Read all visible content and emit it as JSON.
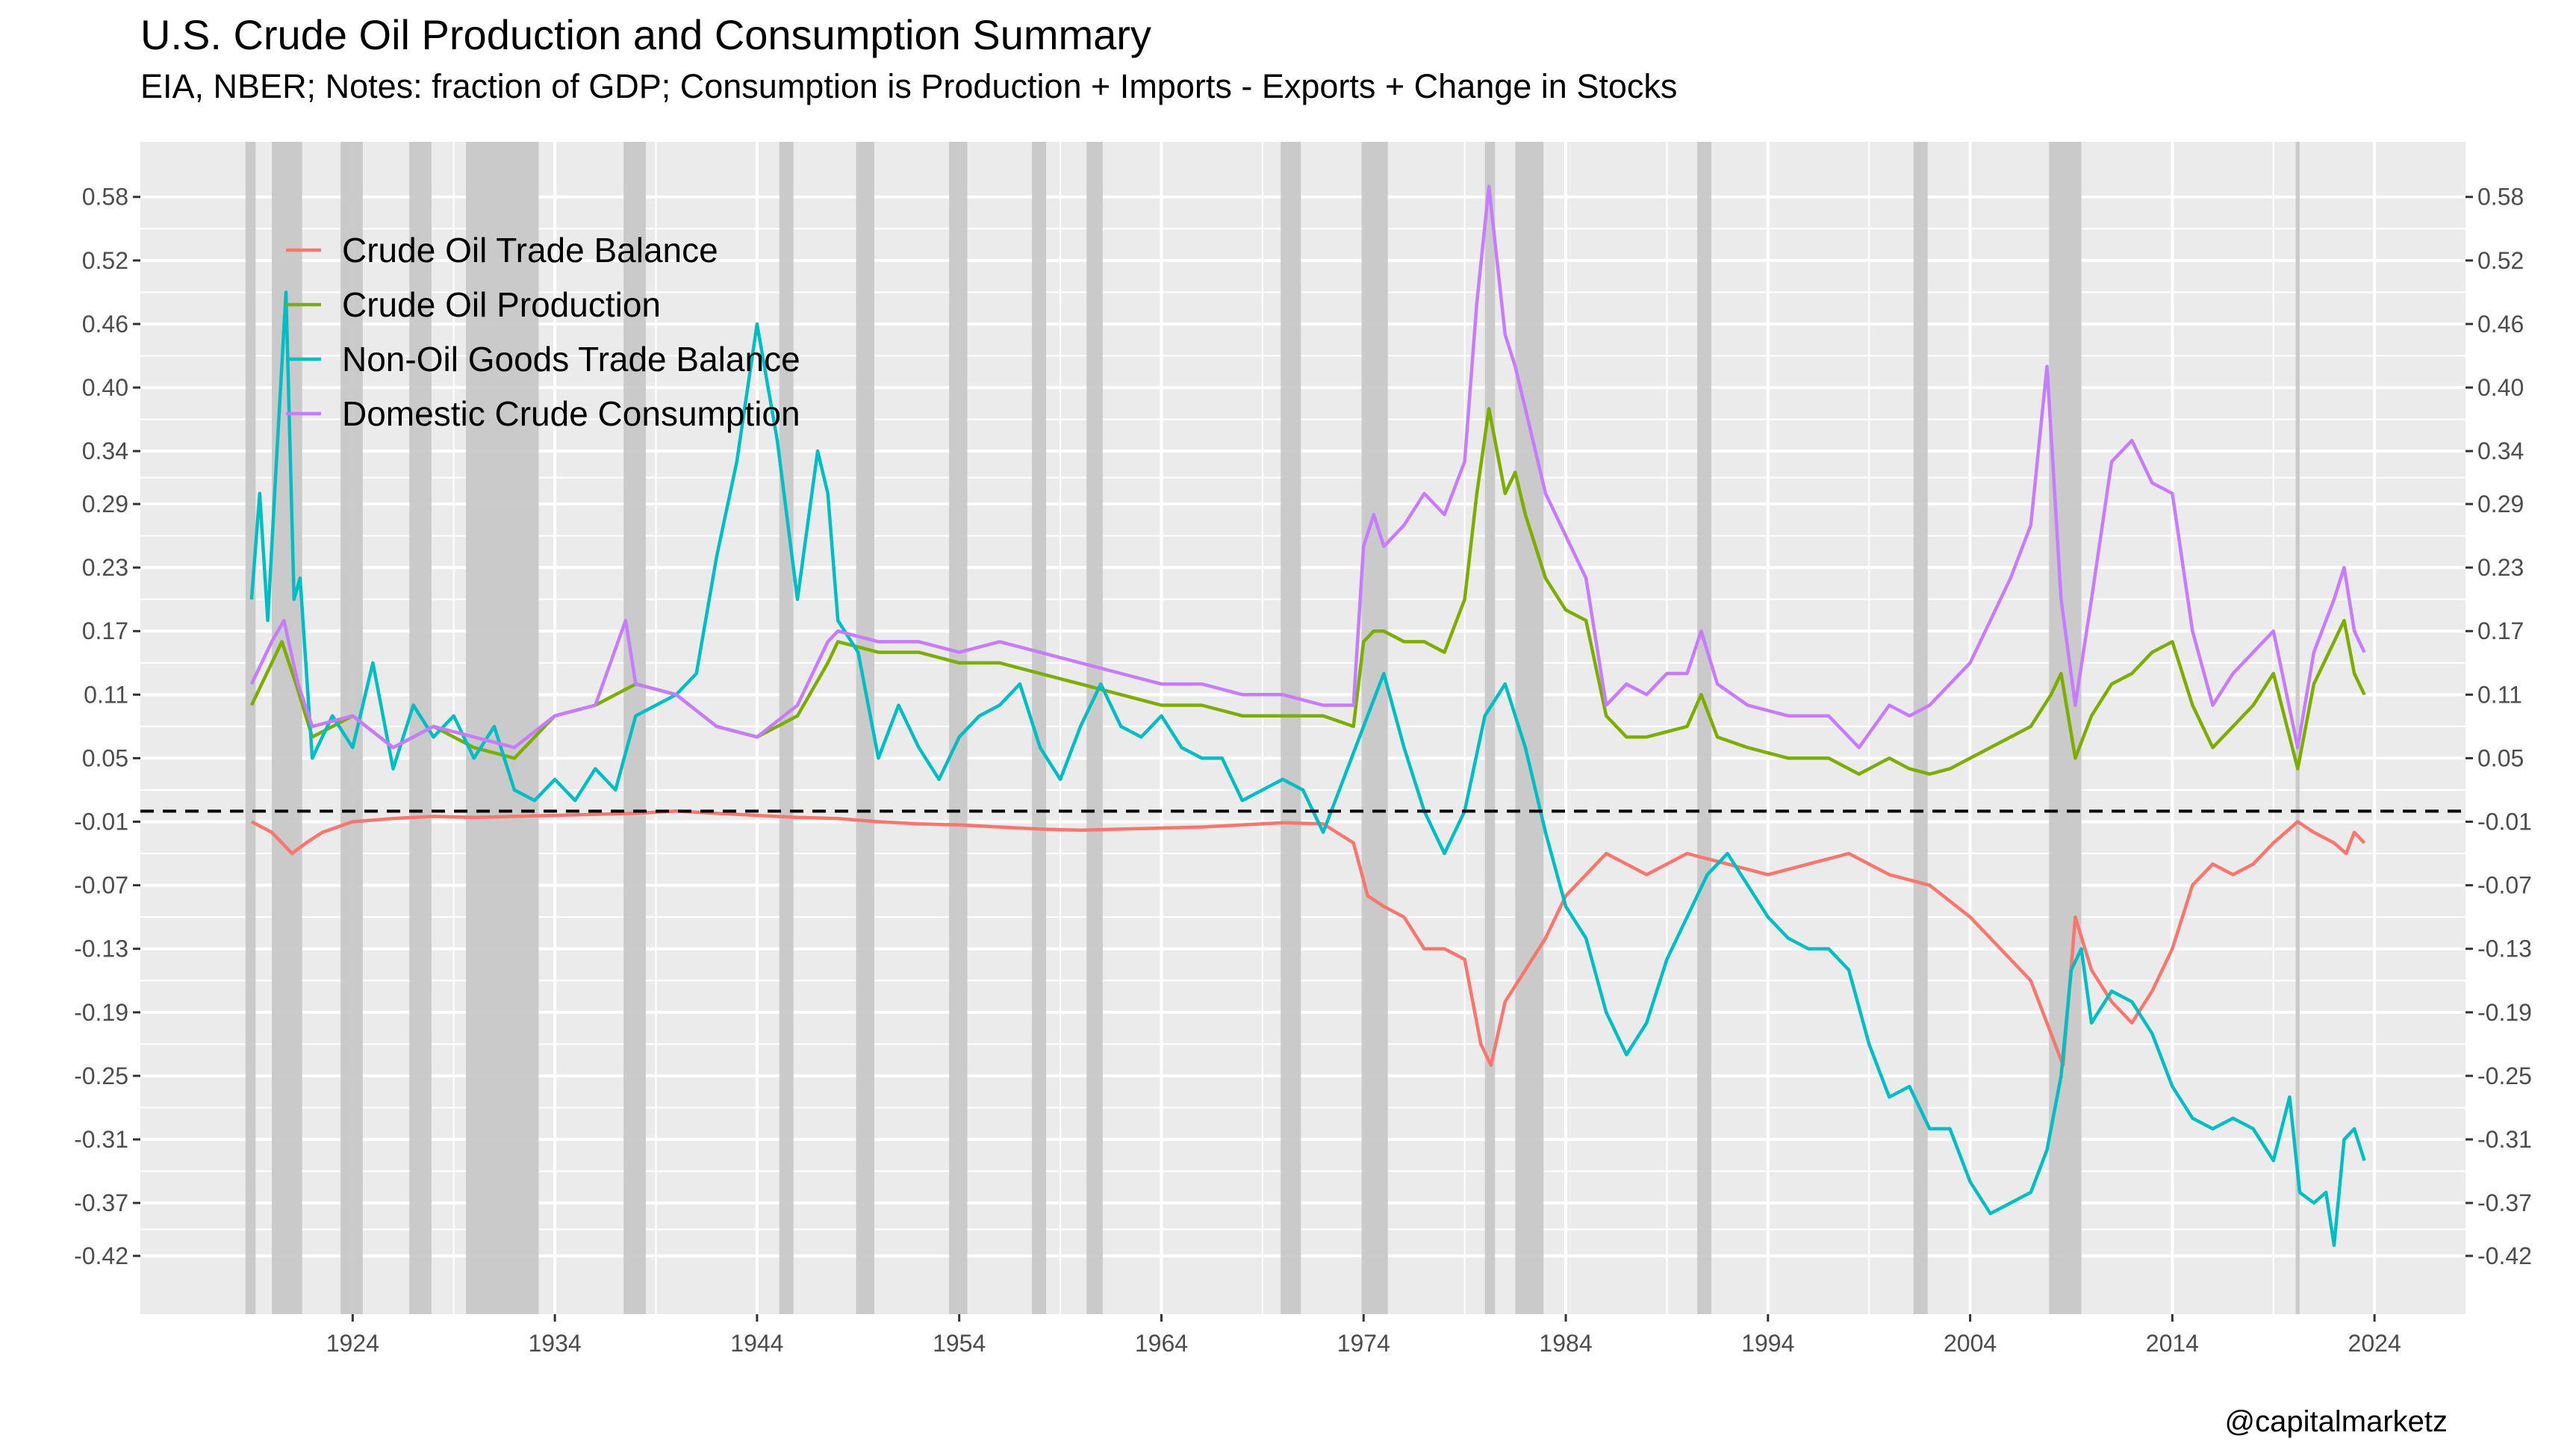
{
  "chart_data": {
    "type": "line",
    "title": "U.S. Crude Oil Production and Consumption Summary",
    "subtitle": "EIA, NBER; Notes: fraction of GDP; Consumption is Production + Imports - Exports + Change in Stocks",
    "caption": "@capitalmarketz",
    "xlabel": "",
    "ylabel": "",
    "xlim": [
      1913.5,
      2028.5
    ],
    "ylim": [
      -0.475,
      0.632
    ],
    "x_ticks": [
      1924,
      1934,
      1944,
      1954,
      1964,
      1974,
      1984,
      1994,
      2004,
      2014,
      2024
    ],
    "y_ticks": [
      0.58,
      0.52,
      0.46,
      0.4,
      0.34,
      0.29,
      0.23,
      0.17,
      0.11,
      0.05,
      -0.01,
      -0.07,
      -0.13,
      -0.19,
      -0.25,
      -0.31,
      -0.37,
      -0.42
    ],
    "y_tick_labels": [
      "0.58",
      "0.52",
      "0.46",
      "0.40",
      "0.34",
      "0.29",
      "0.23",
      "0.17",
      "0.11",
      "0.05",
      "-0.01",
      "-0.07",
      "-0.13",
      "-0.19",
      "-0.25",
      "-0.31",
      "-0.37",
      "-0.42"
    ],
    "y_axis_both_sides": true,
    "grid": true,
    "legend_position": "top-left inside",
    "reference_line": {
      "y": 0,
      "style": "dashed",
      "color": "#000000"
    },
    "recessions": [
      [
        1918.7,
        1919.2
      ],
      [
        1920.0,
        1921.5
      ],
      [
        1923.4,
        1924.5
      ],
      [
        1926.8,
        1927.9
      ],
      [
        1929.6,
        1933.2
      ],
      [
        1937.4,
        1938.5
      ],
      [
        1945.1,
        1945.8
      ],
      [
        1948.9,
        1949.8
      ],
      [
        1953.5,
        1954.4
      ],
      [
        1957.6,
        1958.3
      ],
      [
        1960.3,
        1961.1
      ],
      [
        1969.9,
        1970.9
      ],
      [
        1973.9,
        1975.2
      ],
      [
        1980.0,
        1980.5
      ],
      [
        1981.5,
        1982.9
      ],
      [
        1990.5,
        1991.2
      ],
      [
        2001.2,
        2001.9
      ],
      [
        2007.9,
        2009.5
      ],
      [
        2020.1,
        2020.3
      ]
    ],
    "colors": {
      "background_panel": "#EBEBEB",
      "grid": "#FFFFFF",
      "recession": "#C8C8C8",
      "trade_balance": "#F8766D",
      "production": "#7CAE00",
      "non_oil": "#00BFC4",
      "consumption": "#C77CFF"
    },
    "series": [
      {
        "name": "Crude Oil Trade Balance",
        "color": "#F8766D",
        "x": [
          1919.0,
          1920.0,
          1921.0,
          1921.7,
          1922.5,
          1924,
          1926,
          1928,
          1930,
          1932,
          1934,
          1936,
          1938,
          1940,
          1942,
          1944,
          1946,
          1948,
          1950,
          1952,
          1954,
          1956,
          1958,
          1960,
          1962,
          1964,
          1966,
          1968,
          1970,
          1972,
          1973.5,
          1974.2,
          1975,
          1976,
          1977,
          1978,
          1979,
          1979.8,
          1980.3,
          1981,
          1982,
          1983,
          1984,
          1985,
          1986,
          1987,
          1988,
          1990,
          1992,
          1994,
          1996,
          1998,
          2000,
          2002,
          2004,
          2005.5,
          2007,
          2008,
          2008.6,
          2009.2,
          2010,
          2011,
          2012,
          2013,
          2014,
          2015,
          2016,
          2017,
          2018,
          2019,
          2020.2,
          2021,
          2022,
          2022.6,
          2023,
          2023.5
        ],
        "values": [
          -0.01,
          -0.02,
          -0.04,
          -0.03,
          -0.02,
          -0.01,
          -0.007,
          -0.005,
          -0.006,
          -0.005,
          -0.004,
          -0.003,
          -0.002,
          0.0,
          -0.002,
          -0.004,
          -0.006,
          -0.007,
          -0.01,
          -0.012,
          -0.013,
          -0.015,
          -0.017,
          -0.018,
          -0.017,
          -0.016,
          -0.015,
          -0.013,
          -0.011,
          -0.012,
          -0.03,
          -0.08,
          -0.09,
          -0.1,
          -0.13,
          -0.13,
          -0.14,
          -0.22,
          -0.24,
          -0.18,
          -0.15,
          -0.12,
          -0.08,
          -0.06,
          -0.04,
          -0.05,
          -0.06,
          -0.04,
          -0.05,
          -0.06,
          -0.05,
          -0.04,
          -0.06,
          -0.07,
          -0.1,
          -0.13,
          -0.16,
          -0.21,
          -0.24,
          -0.1,
          -0.15,
          -0.18,
          -0.2,
          -0.17,
          -0.13,
          -0.07,
          -0.05,
          -0.06,
          -0.05,
          -0.03,
          -0.01,
          -0.02,
          -0.03,
          -0.04,
          -0.02,
          -0.03
        ]
      },
      {
        "name": "Crude Oil Production",
        "color": "#7CAE00",
        "x": [
          1919.0,
          1920.0,
          1920.5,
          1921.2,
          1922.0,
          1924,
          1926,
          1928,
          1930,
          1932,
          1934,
          1936,
          1938,
          1940,
          1942,
          1944,
          1946,
          1947.5,
          1948,
          1950,
          1952,
          1954,
          1956,
          1958,
          1960,
          1962,
          1964,
          1966,
          1968,
          1970,
          1972,
          1973.5,
          1974.0,
          1974.5,
          1975,
          1976,
          1977,
          1978,
          1979,
          1979.6,
          1980.2,
          1981,
          1981.5,
          1982,
          1983,
          1984,
          1985,
          1986,
          1987,
          1988,
          1990,
          1990.7,
          1991.5,
          1993,
          1995,
          1997,
          1998.5,
          2000,
          2001,
          2002,
          2003,
          2004,
          2005,
          2006,
          2007,
          2008,
          2008.5,
          2009.2,
          2010,
          2011,
          2012,
          2013,
          2014,
          2015,
          2016,
          2017,
          2018,
          2019,
          2020.2,
          2021,
          2022,
          2022.5,
          2023,
          2023.5
        ],
        "values": [
          0.1,
          0.14,
          0.16,
          0.12,
          0.07,
          0.09,
          0.06,
          0.08,
          0.06,
          0.05,
          0.09,
          0.1,
          0.12,
          0.11,
          0.08,
          0.07,
          0.09,
          0.14,
          0.16,
          0.15,
          0.15,
          0.14,
          0.14,
          0.13,
          0.12,
          0.11,
          0.1,
          0.1,
          0.09,
          0.09,
          0.09,
          0.08,
          0.16,
          0.17,
          0.17,
          0.16,
          0.16,
          0.15,
          0.2,
          0.3,
          0.38,
          0.3,
          0.32,
          0.28,
          0.22,
          0.19,
          0.18,
          0.09,
          0.07,
          0.07,
          0.08,
          0.11,
          0.07,
          0.06,
          0.05,
          0.05,
          0.035,
          0.05,
          0.04,
          0.035,
          0.04,
          0.05,
          0.06,
          0.07,
          0.08,
          0.11,
          0.13,
          0.05,
          0.09,
          0.12,
          0.13,
          0.15,
          0.16,
          0.1,
          0.06,
          0.08,
          0.1,
          0.13,
          0.04,
          0.12,
          0.16,
          0.18,
          0.13,
          0.11
        ]
      },
      {
        "name": "Non-Oil Goods Trade Balance",
        "color": "#00BFC4",
        "x": [
          1919.0,
          1919.4,
          1919.8,
          1920.2,
          1920.7,
          1921.1,
          1921.4,
          1922,
          1923,
          1924,
          1925,
          1926,
          1927,
          1928,
          1929,
          1930,
          1931,
          1932,
          1933,
          1934,
          1935,
          1936,
          1937,
          1938,
          1939,
          1940,
          1941,
          1942,
          1943,
          1944,
          1945,
          1946,
          1947,
          1947.5,
          1948,
          1949,
          1950,
          1951,
          1952,
          1953,
          1954,
          1955,
          1956,
          1957,
          1958,
          1959,
          1960,
          1961,
          1962,
          1963,
          1964,
          1965,
          1966,
          1967,
          1968,
          1969,
          1970,
          1971,
          1972,
          1973,
          1974,
          1975,
          1976,
          1977,
          1978,
          1979,
          1980,
          1981,
          1982,
          1983,
          1984,
          1985,
          1986,
          1987,
          1988,
          1989,
          1990,
          1991,
          1992,
          1993,
          1994,
          1995,
          1996,
          1997,
          1998,
          1999,
          2000,
          2001,
          2002,
          2003,
          2004,
          2005,
          2006,
          2007,
          2007.8,
          2008.5,
          2009,
          2009.5,
          2010,
          2011,
          2012,
          2013,
          2014,
          2015,
          2016,
          2017,
          2018,
          2019,
          2019.8,
          2020.3,
          2021,
          2021.6,
          2022,
          2022.5,
          2023,
          2023.5
        ],
        "values": [
          0.2,
          0.3,
          0.18,
          0.32,
          0.49,
          0.2,
          0.22,
          0.05,
          0.09,
          0.06,
          0.14,
          0.04,
          0.1,
          0.07,
          0.09,
          0.05,
          0.08,
          0.02,
          0.01,
          0.03,
          0.01,
          0.04,
          0.02,
          0.09,
          0.1,
          0.11,
          0.13,
          0.24,
          0.33,
          0.46,
          0.35,
          0.2,
          0.34,
          0.3,
          0.18,
          0.15,
          0.05,
          0.1,
          0.06,
          0.03,
          0.07,
          0.09,
          0.1,
          0.12,
          0.06,
          0.03,
          0.08,
          0.12,
          0.08,
          0.07,
          0.09,
          0.06,
          0.05,
          0.05,
          0.01,
          0.02,
          0.03,
          0.02,
          -0.02,
          0.03,
          0.08,
          0.13,
          0.06,
          0.0,
          -0.04,
          0.0,
          0.09,
          0.12,
          0.06,
          -0.02,
          -0.09,
          -0.12,
          -0.19,
          -0.23,
          -0.2,
          -0.14,
          -0.1,
          -0.06,
          -0.04,
          -0.07,
          -0.1,
          -0.12,
          -0.13,
          -0.13,
          -0.15,
          -0.22,
          -0.27,
          -0.26,
          -0.3,
          -0.3,
          -0.35,
          -0.38,
          -0.37,
          -0.36,
          -0.32,
          -0.25,
          -0.15,
          -0.13,
          -0.2,
          -0.17,
          -0.18,
          -0.21,
          -0.26,
          -0.29,
          -0.3,
          -0.29,
          -0.3,
          -0.33,
          -0.27,
          -0.36,
          -0.37,
          -0.36,
          -0.41,
          -0.31,
          -0.3,
          -0.33
        ]
      },
      {
        "name": "Domestic Crude Consumption",
        "color": "#C77CFF",
        "x": [
          1919.0,
          1920.0,
          1920.6,
          1921.3,
          1922,
          1924,
          1926,
          1928,
          1930,
          1932,
          1934,
          1936,
          1937.5,
          1938,
          1940,
          1942,
          1944,
          1946,
          1947.5,
          1948,
          1950,
          1952,
          1954,
          1956,
          1958,
          1960,
          1962,
          1964,
          1966,
          1968,
          1970,
          1972,
          1973.5,
          1974.0,
          1974.5,
          1975,
          1976,
          1977,
          1978,
          1979,
          1979.6,
          1980.2,
          1981,
          1981.5,
          1982,
          1983,
          1984,
          1985,
          1986,
          1987,
          1988,
          1989,
          1990,
          1990.7,
          1991.5,
          1993,
          1995,
          1997,
          1998.5,
          2000,
          2001,
          2002,
          2003,
          2004,
          2005,
          2006,
          2007,
          2007.8,
          2008.5,
          2009.2,
          2010,
          2011,
          2012,
          2013,
          2014,
          2015,
          2016,
          2017,
          2018,
          2019,
          2020.2,
          2021,
          2022,
          2022.5,
          2023,
          2023.5
        ],
        "values": [
          0.12,
          0.16,
          0.18,
          0.12,
          0.08,
          0.09,
          0.06,
          0.08,
          0.07,
          0.06,
          0.09,
          0.1,
          0.18,
          0.12,
          0.11,
          0.08,
          0.07,
          0.1,
          0.16,
          0.17,
          0.16,
          0.16,
          0.15,
          0.16,
          0.15,
          0.14,
          0.13,
          0.12,
          0.12,
          0.11,
          0.11,
          0.1,
          0.1,
          0.25,
          0.28,
          0.25,
          0.27,
          0.3,
          0.28,
          0.33,
          0.48,
          0.59,
          0.45,
          0.42,
          0.38,
          0.3,
          0.26,
          0.22,
          0.1,
          0.12,
          0.11,
          0.13,
          0.13,
          0.17,
          0.12,
          0.1,
          0.09,
          0.09,
          0.06,
          0.1,
          0.09,
          0.1,
          0.12,
          0.14,
          0.18,
          0.22,
          0.27,
          0.42,
          0.2,
          0.1,
          0.2,
          0.33,
          0.35,
          0.31,
          0.3,
          0.17,
          0.1,
          0.13,
          0.15,
          0.17,
          0.06,
          0.15,
          0.2,
          0.23,
          0.17,
          0.15
        ]
      }
    ]
  }
}
